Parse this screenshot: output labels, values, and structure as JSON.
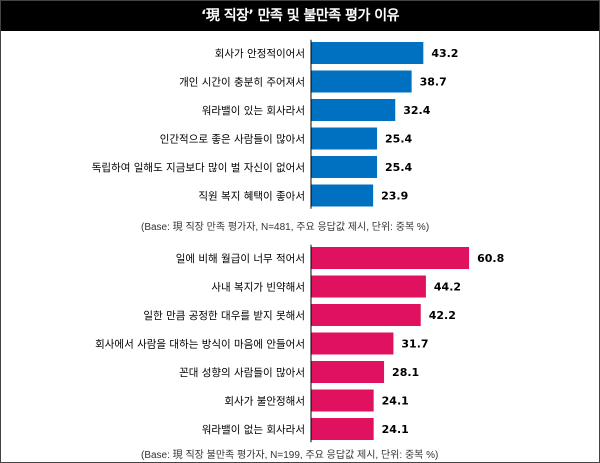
{
  "title": "‘現 직장’ 만족 및 불만족 평가 이유",
  "chart_data": [
    {
      "type": "bar",
      "orientation": "horizontal",
      "color": "#0070C0",
      "categories": [
        "회사가 안정적이어서",
        "개인 시간이 충분히 주어져서",
        "워라밸이 있는 회사라서",
        "인간적으로 좋은 사람들이 많아서",
        "독립하여 일해도 지금보다 많이 벌 자신이 없어서",
        "직원 복지 혜택이 좋아서"
      ],
      "values": [
        43.2,
        38.7,
        32.4,
        25.4,
        25.4,
        23.9
      ],
      "value_labels": [
        "43.2",
        "38.7",
        "32.4",
        "25.4",
        "25.4",
        "23.9"
      ],
      "note": "(Base: 現 직장 만족 평가자, N=481, 주요 응답값 제시, 단위: 중복 %)"
    },
    {
      "type": "bar",
      "orientation": "horizontal",
      "color": "#E0115F",
      "categories": [
        "일에 비해 월급이 너무 적어서",
        "사내 복지가 빈약해서",
        "일한 만큼 공정한 대우를 받지 못해서",
        "회사에서 사람을 대하는 방식이 마음에 안들어서",
        "꼰대 성향의 사람들이 많아서",
        "회사가 불안정해서",
        "워라밸이 없는 회사라서"
      ],
      "values": [
        60.8,
        44.2,
        42.2,
        31.7,
        28.1,
        24.1,
        24.1
      ],
      "value_labels": [
        "60.8",
        "44.2",
        "42.2",
        "31.7",
        "28.1",
        "24.1",
        "24.1"
      ],
      "note": "(Base: 現 직장 불만족 평가자, N=199, 주요 응답값 제시, 단위: 중복 %)"
    }
  ]
}
